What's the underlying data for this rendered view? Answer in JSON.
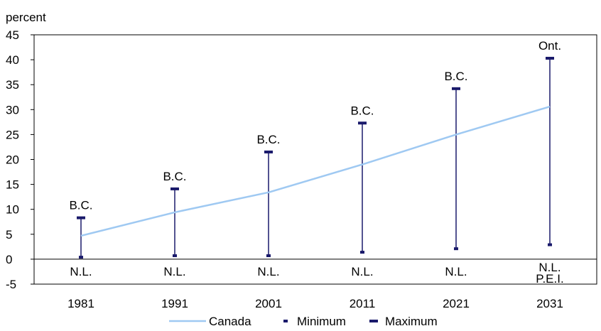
{
  "chart_data": {
    "type": "line",
    "ylabel": "percent",
    "ylim": [
      -5,
      45
    ],
    "yticks": [
      45,
      40,
      35,
      30,
      25,
      20,
      15,
      10,
      5,
      0,
      -5
    ],
    "grid": false,
    "legend_position": "bottom",
    "categories": [
      "1981",
      "1991",
      "2001",
      "2011",
      "2021",
      "2031"
    ],
    "series": [
      {
        "name": "Canada",
        "type": "line",
        "color": "#9fc9f2",
        "values": [
          4.7,
          9.4,
          13.4,
          19.0,
          25.0,
          30.6
        ]
      },
      {
        "name": "Minimum",
        "type": "marker",
        "color": "#1a1a6b",
        "values": [
          0.4,
          0.7,
          0.7,
          1.4,
          2.1,
          2.9
        ]
      },
      {
        "name": "Maximum",
        "type": "marker",
        "color": "#1a1a6b",
        "values": [
          8.3,
          14.1,
          21.5,
          27.3,
          34.2,
          40.3
        ]
      }
    ],
    "max_labels": [
      "B.C.",
      "B.C.",
      "B.C.",
      "B.C.",
      "B.C.",
      "Ont."
    ],
    "min_labels": [
      [
        "N.L."
      ],
      [
        "N.L."
      ],
      [
        "N.L."
      ],
      [
        "N.L."
      ],
      [
        "N.L."
      ],
      [
        "N.L.",
        "P.E.I."
      ]
    ]
  }
}
